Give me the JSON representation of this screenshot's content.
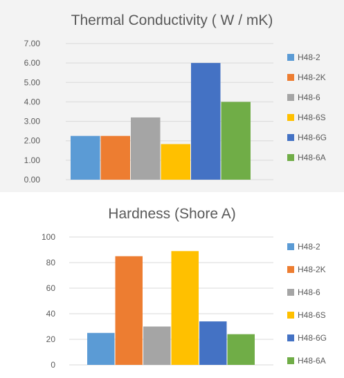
{
  "chart_data": [
    {
      "type": "bar",
      "title": "Thermal Conductivity ( W / mK)",
      "xlabel": "",
      "ylabel": "",
      "ylim": [
        0,
        7
      ],
      "yticks": [
        "0.00",
        "1.00",
        "2.00",
        "3.00",
        "4.00",
        "5.00",
        "6.00",
        "7.00"
      ],
      "grid": true,
      "legend_position": "right",
      "series": [
        {
          "name": "H48-2",
          "value": 2.25,
          "color": "#5b9bd5"
        },
        {
          "name": "H48-2K",
          "value": 2.25,
          "color": "#ed7d31"
        },
        {
          "name": "H48-6",
          "value": 3.2,
          "color": "#a5a5a5"
        },
        {
          "name": "H48-6S",
          "value": 1.83,
          "color": "#ffc000"
        },
        {
          "name": "H48-6G",
          "value": 6.0,
          "color": "#4472c4"
        },
        {
          "name": "H48-6A",
          "value": 4.0,
          "color": "#70ad47"
        }
      ]
    },
    {
      "type": "bar",
      "title": "Hardness (Shore A)",
      "xlabel": "",
      "ylabel": "",
      "ylim": [
        0,
        100
      ],
      "yticks": [
        "0",
        "20",
        "40",
        "60",
        "80",
        "100"
      ],
      "grid": true,
      "legend_position": "right",
      "series": [
        {
          "name": "H48-2",
          "value": 25,
          "color": "#5b9bd5"
        },
        {
          "name": "H48-2K",
          "value": 85,
          "color": "#ed7d31"
        },
        {
          "name": "H48-6",
          "value": 30,
          "color": "#a5a5a5"
        },
        {
          "name": "H48-6S",
          "value": 89,
          "color": "#ffc000"
        },
        {
          "name": "H48-6G",
          "value": 34,
          "color": "#4472c4"
        },
        {
          "name": "H48-6A",
          "value": 24,
          "color": "#70ad47"
        }
      ]
    }
  ]
}
